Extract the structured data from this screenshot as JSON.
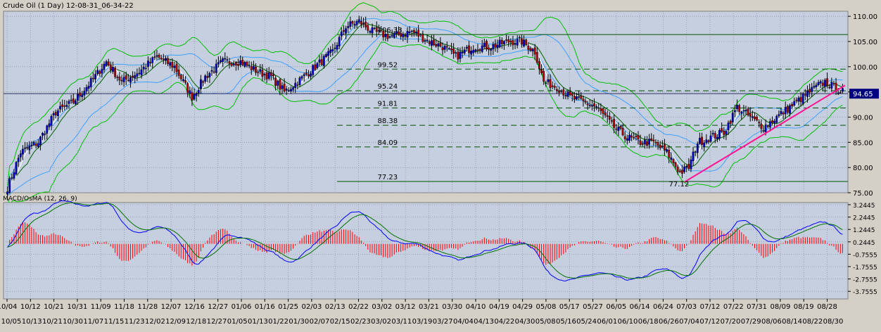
{
  "title": "Crude Oil (1 Day) 12-08-31_06-34-22",
  "macd_title": "MACD/OsMA (12, 26, 9)",
  "current_price": "94.65",
  "colors": {
    "panel_bg": "#c6cfe0",
    "outer_bg": "#d4d0c8",
    "grid": "#8f96a6",
    "candle_up": "#0000c8",
    "candle_down": "#b40000",
    "bb_outer": "#00c000",
    "bb_inner": "#40a0ff",
    "ma_short": "#ffffff",
    "ma_long": "#006000",
    "trend": "#ff1493",
    "macd_line": "#0000ff",
    "signal_line": "#007000",
    "histogram": "#ff0000"
  },
  "price_axis": {
    "ticks": [
      "110.00",
      "105.00",
      "100.00",
      "95.00",
      "90.00",
      "85.00",
      "80.00",
      "75.00"
    ]
  },
  "macd_axis": {
    "ticks": [
      "3.2445",
      "2.2445",
      "1.2445",
      "0.2445",
      "-0.7555",
      "-1.7555",
      "-2.7555",
      "-3.7555"
    ]
  },
  "fib_levels": [
    {
      "label": "106.38",
      "value": 106.38,
      "style": "solid"
    },
    {
      "label": "99.52",
      "value": 99.52,
      "style": "dash"
    },
    {
      "label": "95.24",
      "value": 95.24,
      "style": "dash"
    },
    {
      "label": "91.81",
      "value": 91.81,
      "style": "dash"
    },
    {
      "label": "88.38",
      "value": 88.38,
      "style": "dash"
    },
    {
      "label": "84.09",
      "value": 84.09,
      "style": "dash"
    },
    {
      "label": "77.23",
      "value": 77.23,
      "style": "solid"
    }
  ],
  "low_label": "77.12",
  "x_labels_top": [
    "10/04",
    "10/12",
    "10/21",
    "10/31",
    "11/09",
    "11/18",
    "11/28",
    "12/07",
    "12/16",
    "12/27",
    "01/06",
    "01/16",
    "01/25",
    "02/03",
    "02/13",
    "02/22",
    "03/02",
    "03/12",
    "03/21",
    "03/30",
    "04/10",
    "04/19",
    "04/29",
    "05/08",
    "05/17",
    "05/27",
    "06/05",
    "06/14",
    "06/24",
    "07/03",
    "07/12",
    "07/22",
    "07/31",
    "08/09",
    "08/19",
    "08/28"
  ],
  "x_labels_bottom": [
    "10/05",
    "10/13",
    "10/21",
    "10/30",
    "11/07",
    "11/15",
    "11/23",
    "12/02",
    "12/09",
    "12/18",
    "12/27",
    "01/05",
    "01/13",
    "01/22",
    "01/30",
    "02/07",
    "02/15",
    "02/23",
    "03/02",
    "03/11",
    "03/19",
    "03/27",
    "04/04",
    "04/13",
    "04/22",
    "04/30",
    "05/08",
    "05/16",
    "05/24",
    "06/01",
    "06/10",
    "06/18",
    "06/26",
    "07/04",
    "07/12",
    "07/20",
    "07/29",
    "08/06",
    "08/14",
    "08/22",
    "08/30"
  ],
  "chart_data": {
    "type": "candlestick",
    "instrument": "Crude Oil (1 Day)",
    "price_range": [
      75,
      111
    ],
    "macd_range": [
      -3.7555,
      3.2445
    ],
    "close_anchors": [
      [
        0,
        76
      ],
      [
        6,
        83
      ],
      [
        14,
        85
      ],
      [
        22,
        91
      ],
      [
        30,
        93
      ],
      [
        38,
        97
      ],
      [
        45,
        101
      ],
      [
        52,
        97
      ],
      [
        60,
        99
      ],
      [
        68,
        102
      ],
      [
        76,
        100
      ],
      [
        84,
        94
      ],
      [
        90,
        98
      ],
      [
        98,
        101
      ],
      [
        106,
        101
      ],
      [
        114,
        99
      ],
      [
        120,
        98
      ],
      [
        126,
        95
      ],
      [
        132,
        97
      ],
      [
        140,
        100
      ],
      [
        148,
        103
      ],
      [
        154,
        108
      ],
      [
        160,
        109
      ],
      [
        166,
        107
      ],
      [
        174,
        106
      ],
      [
        184,
        107
      ],
      [
        192,
        105
      ],
      [
        198,
        104
      ],
      [
        204,
        102
      ],
      [
        212,
        104
      ],
      [
        220,
        104
      ],
      [
        228,
        105
      ],
      [
        234,
        105
      ],
      [
        240,
        103
      ],
      [
        244,
        97
      ],
      [
        250,
        96
      ],
      [
        256,
        94
      ],
      [
        262,
        93
      ],
      [
        268,
        92
      ],
      [
        276,
        88
      ],
      [
        282,
        86
      ],
      [
        288,
        85
      ],
      [
        294,
        85
      ],
      [
        300,
        83
      ],
      [
        306,
        79
      ],
      [
        310,
        80
      ],
      [
        314,
        85
      ],
      [
        320,
        86
      ],
      [
        326,
        87
      ],
      [
        332,
        92
      ],
      [
        338,
        90
      ],
      [
        344,
        88
      ],
      [
        350,
        90
      ],
      [
        356,
        92
      ],
      [
        362,
        94
      ],
      [
        368,
        96
      ],
      [
        372,
        97
      ],
      [
        376,
        96
      ],
      [
        380,
        95
      ]
    ],
    "trend_line": {
      "start": [
        308,
        77.12
      ],
      "end": [
        380,
        96.3
      ]
    }
  }
}
